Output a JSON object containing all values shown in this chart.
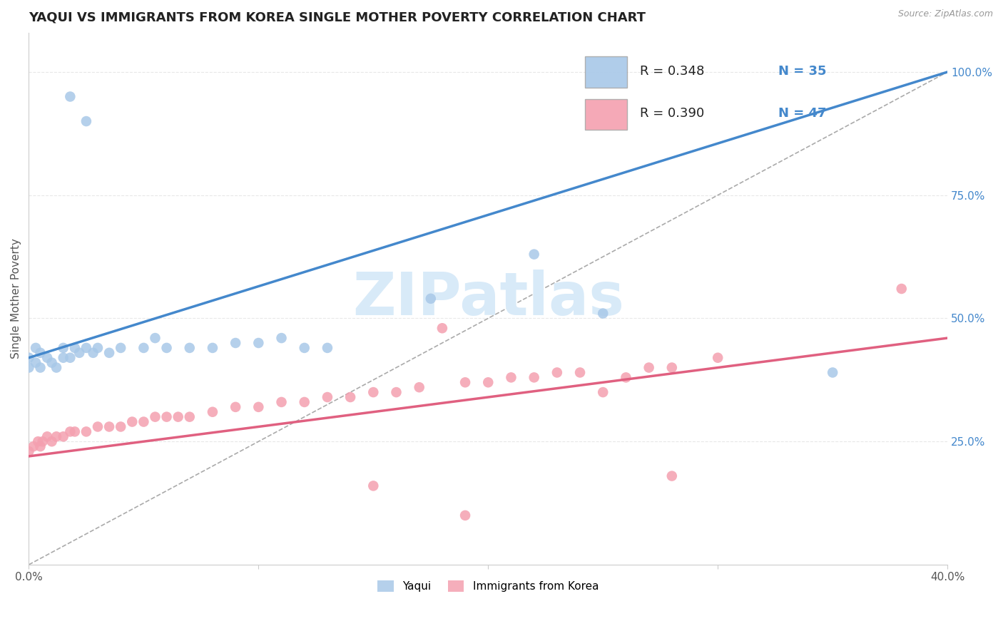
{
  "title": "YAQUI VS IMMIGRANTS FROM KOREA SINGLE MOTHER POVERTY CORRELATION CHART",
  "source": "Source: ZipAtlas.com",
  "ylabel": "Single Mother Poverty",
  "xmin": 0.0,
  "xmax": 0.4,
  "ymin": 0.0,
  "ymax": 1.08,
  "xticks": [
    0.0,
    0.1,
    0.2,
    0.3,
    0.4
  ],
  "xtick_labels": [
    "0.0%",
    "",
    "",
    "",
    "40.0%"
  ],
  "yticks": [
    0.25,
    0.5,
    0.75,
    1.0
  ],
  "ytick_labels": [
    "25.0%",
    "50.0%",
    "75.0%",
    "100.0%"
  ],
  "legend_labels": [
    "Yaqui",
    "Immigrants from Korea"
  ],
  "blue_R": "R = 0.348",
  "blue_N": "N = 35",
  "pink_R": "R = 0.390",
  "pink_N": "N = 47",
  "blue_color": "#a8c8e8",
  "pink_color": "#f4a0b0",
  "blue_line_color": "#4488cc",
  "pink_line_color": "#e06080",
  "watermark_color": "#d8eaf8",
  "grid_color": "#e8e8e8",
  "background_color": "#ffffff",
  "title_fontsize": 13,
  "axis_label_fontsize": 11,
  "tick_fontsize": 11,
  "blue_scatter_x": [
    0.018,
    0.025,
    0.0,
    0.003,
    0.005,
    0.0,
    0.003,
    0.005,
    0.008,
    0.01,
    0.012,
    0.015,
    0.015,
    0.018,
    0.02,
    0.022,
    0.025,
    0.028,
    0.03,
    0.035,
    0.04,
    0.05,
    0.055,
    0.06,
    0.07,
    0.08,
    0.09,
    0.1,
    0.11,
    0.12,
    0.13,
    0.22,
    0.25,
    0.35,
    0.175
  ],
  "blue_scatter_y": [
    0.95,
    0.9,
    0.42,
    0.44,
    0.43,
    0.4,
    0.41,
    0.4,
    0.42,
    0.41,
    0.4,
    0.44,
    0.42,
    0.42,
    0.44,
    0.43,
    0.44,
    0.43,
    0.44,
    0.43,
    0.44,
    0.44,
    0.46,
    0.44,
    0.44,
    0.44,
    0.45,
    0.45,
    0.46,
    0.44,
    0.44,
    0.63,
    0.51,
    0.39,
    0.54
  ],
  "pink_scatter_x": [
    0.0,
    0.002,
    0.004,
    0.005,
    0.006,
    0.008,
    0.01,
    0.012,
    0.015,
    0.018,
    0.02,
    0.025,
    0.03,
    0.035,
    0.04,
    0.045,
    0.05,
    0.055,
    0.06,
    0.065,
    0.07,
    0.08,
    0.09,
    0.1,
    0.11,
    0.12,
    0.13,
    0.14,
    0.15,
    0.16,
    0.17,
    0.18,
    0.19,
    0.2,
    0.21,
    0.22,
    0.23,
    0.24,
    0.25,
    0.26,
    0.27,
    0.28,
    0.3,
    0.38,
    0.28,
    0.15,
    0.19
  ],
  "pink_scatter_y": [
    0.23,
    0.24,
    0.25,
    0.24,
    0.25,
    0.26,
    0.25,
    0.26,
    0.26,
    0.27,
    0.27,
    0.27,
    0.28,
    0.28,
    0.28,
    0.29,
    0.29,
    0.3,
    0.3,
    0.3,
    0.3,
    0.31,
    0.32,
    0.32,
    0.33,
    0.33,
    0.34,
    0.34,
    0.35,
    0.35,
    0.36,
    0.48,
    0.37,
    0.37,
    0.38,
    0.38,
    0.39,
    0.39,
    0.35,
    0.38,
    0.4,
    0.4,
    0.42,
    0.56,
    0.18,
    0.16,
    0.1
  ],
  "blue_line_x": [
    0.0,
    0.4
  ],
  "blue_line_y": [
    0.42,
    1.0
  ],
  "pink_line_x": [
    0.0,
    0.4
  ],
  "pink_line_y": [
    0.22,
    0.46
  ],
  "diag_line_x": [
    0.0,
    0.4
  ],
  "diag_line_y": [
    0.0,
    1.0
  ]
}
